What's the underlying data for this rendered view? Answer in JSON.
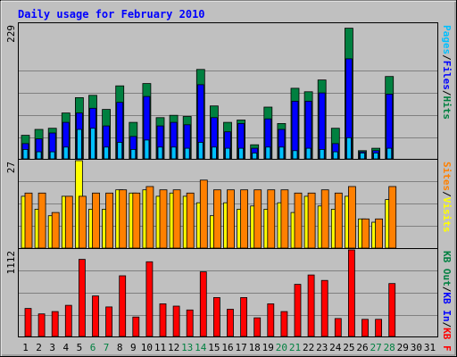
{
  "title": "Daily usage for February 2010",
  "colors": {
    "background": "#c0c0c0",
    "title": "#0000ff",
    "hits": "#008040",
    "files": "#0000ff",
    "pages": "#00c0ff",
    "visits": "#ffff00",
    "sites": "#ff8000",
    "kbin": "#0000ff",
    "kbout": "#008040",
    "kbf": "#ff0000",
    "weekend_day": "#008040",
    "normal_day": "#000000"
  },
  "chart_data": [
    {
      "type": "bar",
      "panel": "hits-files-pages",
      "scale_label": "229",
      "ylim": [
        0,
        229
      ],
      "legend": [
        {
          "text": "Hits",
          "color": "#008040"
        },
        {
          "text": "Files",
          "color": "#0000ff"
        },
        {
          "text": "Pages",
          "color": "#00c0ff"
        }
      ],
      "categories": [
        "1",
        "2",
        "3",
        "4",
        "5",
        "6",
        "7",
        "8",
        "9",
        "10",
        "11",
        "12",
        "13",
        "14",
        "15",
        "16",
        "17",
        "18",
        "19",
        "20",
        "21",
        "22",
        "23",
        "24",
        "25",
        "26",
        "27",
        "28",
        "29",
        "30",
        "31"
      ],
      "series": [
        {
          "name": "Hits",
          "values": [
            40,
            50,
            52,
            78,
            104,
            108,
            84,
            124,
            62,
            128,
            70,
            74,
            72,
            152,
            90,
            62,
            66,
            24,
            88,
            60,
            120,
            114,
            134,
            52,
            222,
            14,
            18,
            140,
            0,
            0,
            0
          ]
        },
        {
          "name": "Files",
          "values": [
            26,
            34,
            44,
            62,
            78,
            86,
            56,
            96,
            38,
            106,
            56,
            62,
            58,
            126,
            70,
            46,
            60,
            18,
            68,
            50,
            98,
            98,
            112,
            26,
            170,
            12,
            14,
            110,
            0,
            0,
            0
          ]
        },
        {
          "name": "Pages",
          "values": [
            16,
            12,
            12,
            20,
            50,
            52,
            20,
            28,
            16,
            32,
            20,
            20,
            18,
            28,
            20,
            18,
            18,
            10,
            20,
            20,
            14,
            18,
            16,
            12,
            36,
            10,
            10,
            18,
            0,
            0,
            0
          ]
        }
      ]
    },
    {
      "type": "bar",
      "panel": "visits-sites",
      "scale_label": "27",
      "ylim": [
        0,
        27
      ],
      "legend": [
        {
          "text": "Visits",
          "color": "#ffff00"
        },
        {
          "text": "Sites",
          "color": "#ff8000"
        }
      ],
      "categories": [
        "1",
        "2",
        "3",
        "4",
        "5",
        "6",
        "7",
        "8",
        "9",
        "10",
        "11",
        "12",
        "13",
        "14",
        "15",
        "16",
        "17",
        "18",
        "19",
        "20",
        "21",
        "22",
        "23",
        "24",
        "25",
        "26",
        "27",
        "28",
        "29",
        "30",
        "31"
      ],
      "series": [
        {
          "name": "Visits",
          "values": [
            16,
            12,
            10,
            16,
            27,
            12,
            12,
            18,
            17,
            18,
            16,
            17,
            16,
            14,
            10,
            14,
            12,
            13,
            12,
            14,
            11,
            16,
            13,
            12,
            16,
            9,
            8,
            15,
            0,
            0,
            0
          ]
        },
        {
          "name": "Sites",
          "values": [
            17,
            17,
            11,
            16,
            16,
            17,
            17,
            18,
            17,
            19,
            18,
            18,
            17,
            21,
            18,
            18,
            18,
            18,
            18,
            18,
            17,
            17,
            18,
            17,
            19,
            9,
            9,
            19,
            0,
            0,
            0
          ]
        }
      ]
    },
    {
      "type": "bar",
      "panel": "kbytes",
      "scale_label": "1112",
      "ylim": [
        0,
        1112
      ],
      "legend": [
        {
          "text": "KB F",
          "color": "#ff0000"
        },
        {
          "text": "KB In",
          "color": "#0000ff"
        },
        {
          "text": "KB Out",
          "color": "#008040"
        }
      ],
      "categories": [
        "1",
        "2",
        "3",
        "4",
        "5",
        "6",
        "7",
        "8",
        "9",
        "10",
        "11",
        "12",
        "13",
        "14",
        "15",
        "16",
        "17",
        "18",
        "19",
        "20",
        "21",
        "22",
        "23",
        "24",
        "25",
        "26",
        "27",
        "28",
        "29",
        "30",
        "31"
      ],
      "series": [
        {
          "name": "KB F",
          "values": [
            360,
            290,
            320,
            400,
            990,
            520,
            380,
            780,
            250,
            960,
            420,
            390,
            340,
            830,
            500,
            350,
            500,
            240,
            420,
            320,
            670,
            790,
            720,
            230,
            1112,
            220,
            220,
            680,
            0,
            0,
            0
          ]
        }
      ]
    }
  ],
  "day_labels": {
    "weekend_days": [
      "6",
      "7",
      "13",
      "14",
      "20",
      "21",
      "27",
      "28"
    ]
  }
}
